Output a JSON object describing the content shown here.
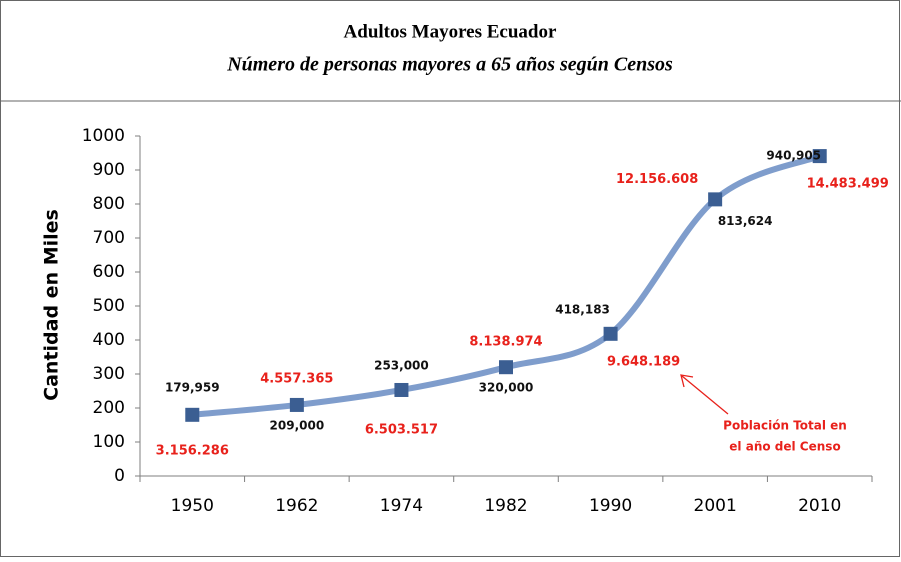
{
  "chart_data": {
    "type": "line",
    "title": "Adultos Mayores Ecuador",
    "subtitle": "Número de personas mayores a 65 años según Censos",
    "y_label": "Cantidad en Miles",
    "categories": [
      "1950",
      "1962",
      "1974",
      "1982",
      "1990",
      "2001",
      "2010"
    ],
    "series": [
      {
        "name": "Adultos Mayores",
        "color": "#7f9dcc",
        "marker_color": "#3b5e92",
        "values": [
          179.959,
          209,
          253,
          320,
          418.183,
          813.624,
          940.905
        ],
        "value_labels": [
          "179,959",
          "209,000",
          "253,000",
          "320,000",
          "418,183",
          "813,624",
          "940,905"
        ]
      }
    ],
    "total_population_labels": [
      "3.156.286",
      "4.557.365",
      "6.503.517",
      "8.138.974",
      "9.648.189",
      "12.156.608",
      "14.483.499"
    ],
    "annotation": [
      "Población Total en",
      "el año del Censo"
    ],
    "ylim": [
      0,
      1000
    ],
    "yticks": [
      0,
      100,
      200,
      300,
      400,
      500,
      600,
      700,
      800,
      900,
      1000
    ],
    "grid": false,
    "legend": false
  }
}
